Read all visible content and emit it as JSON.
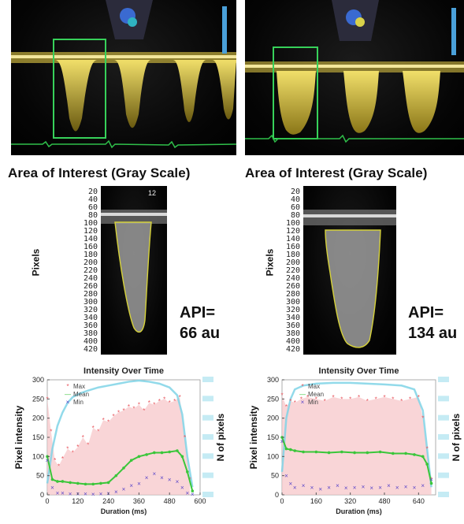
{
  "panels": [
    {
      "title": "Area of Interest (Gray Scale)",
      "api_label": "API=",
      "api_value": "66 au",
      "image_ylabel": "Pixels",
      "image_yticks": [
        "20",
        "40",
        "60",
        "80",
        "100",
        "120",
        "140",
        "160",
        "180",
        "200",
        "220",
        "240",
        "260",
        "280",
        "300",
        "320",
        "340",
        "360",
        "380",
        "400",
        "420"
      ],
      "scale_label": "12"
    },
    {
      "title": "Area of Interest (Gray Scale)",
      "api_label": "API=",
      "api_value": "134 au",
      "image_ylabel": "Pixels",
      "image_yticks": [
        "20",
        "40",
        "60",
        "80",
        "100",
        "120",
        "140",
        "160",
        "180",
        "200",
        "220",
        "240",
        "260",
        "280",
        "300",
        "320",
        "340",
        "360",
        "380",
        "400",
        "420"
      ]
    }
  ],
  "colors": {
    "max": "#e8525a",
    "mean": "#3ac63a",
    "min": "#5a46c8",
    "npixels": "#7fd3e6",
    "fill": "#f7c7c9",
    "doppler": "#d9c24a"
  },
  "chart_data": [
    {
      "type": "scatter",
      "title": "Intensity Over Time",
      "xlabel": "Duration (ms)",
      "ylabel": "Pixel intensity",
      "y2label": "N of pixels",
      "xlim": [
        0,
        600
      ],
      "ylim": [
        0,
        300
      ],
      "xticks": [
        "0",
        "120",
        "240",
        "360",
        "480",
        "600"
      ],
      "yticks": [
        "0",
        "50",
        "100",
        "150",
        "200",
        "250",
        "300"
      ],
      "legend": [
        "Max",
        "Mean",
        "Min"
      ],
      "legend_position": "top-left",
      "series": [
        {
          "name": "Max",
          "x": [
            0,
            15,
            30,
            45,
            60,
            80,
            100,
            120,
            140,
            160,
            180,
            200,
            220,
            240,
            260,
            280,
            300,
            320,
            340,
            360,
            380,
            400,
            420,
            440,
            460,
            480,
            500,
            520,
            540,
            560
          ],
          "y": [
            250,
            165,
            90,
            75,
            95,
            120,
            110,
            125,
            150,
            130,
            175,
            165,
            195,
            190,
            205,
            215,
            220,
            230,
            225,
            235,
            220,
            240,
            235,
            245,
            250,
            240,
            245,
            255,
            150,
            40
          ]
        },
        {
          "name": "Mean",
          "x": [
            0,
            20,
            40,
            60,
            90,
            120,
            150,
            180,
            210,
            240,
            270,
            300,
            330,
            360,
            390,
            420,
            450,
            480,
            510,
            530,
            550,
            570
          ],
          "y": [
            100,
            40,
            35,
            35,
            32,
            30,
            28,
            28,
            30,
            32,
            50,
            70,
            90,
            100,
            105,
            110,
            110,
            112,
            115,
            100,
            60,
            10
          ]
        },
        {
          "name": "Min",
          "x": [
            0,
            20,
            40,
            60,
            90,
            120,
            150,
            180,
            210,
            240,
            270,
            300,
            330,
            360,
            390,
            420,
            450,
            480,
            510,
            530,
            550,
            570
          ],
          "y": [
            90,
            20,
            5,
            5,
            3,
            3,
            3,
            2,
            3,
            4,
            8,
            15,
            25,
            30,
            45,
            55,
            45,
            40,
            35,
            20,
            5,
            2
          ]
        },
        {
          "name": "N of pixels",
          "x": [
            0,
            20,
            40,
            60,
            80,
            100,
            130,
            160,
            200,
            240,
            280,
            320,
            360,
            400,
            440,
            480,
            510,
            530,
            550,
            570
          ],
          "y": [
            30,
            120,
            180,
            215,
            240,
            255,
            265,
            272,
            280,
            285,
            290,
            295,
            298,
            295,
            290,
            280,
            260,
            210,
            100,
            20
          ]
        }
      ]
    },
    {
      "type": "scatter",
      "title": "Intensity Over Time",
      "xlabel": "Duration (ms)",
      "ylabel": "Pixel intensity",
      "y2label": "N of pixels",
      "xlim": [
        0,
        720
      ],
      "ylim": [
        0,
        300
      ],
      "xticks": [
        "0",
        "160",
        "320",
        "480",
        "640"
      ],
      "yticks": [
        "0",
        "50",
        "100",
        "150",
        "200",
        "250",
        "300"
      ],
      "legend": [
        "Max",
        "Mean",
        "Min"
      ],
      "legend_position": "top-left",
      "series": [
        {
          "name": "Max",
          "x": [
            0,
            20,
            40,
            60,
            90,
            120,
            160,
            200,
            240,
            280,
            320,
            360,
            400,
            440,
            480,
            520,
            560,
            600,
            640,
            660,
            680,
            700
          ],
          "y": [
            260,
            230,
            245,
            240,
            250,
            255,
            250,
            245,
            255,
            250,
            250,
            255,
            245,
            250,
            255,
            250,
            245,
            250,
            255,
            200,
            120,
            40
          ]
        },
        {
          "name": "Mean",
          "x": [
            0,
            20,
            40,
            60,
            100,
            160,
            220,
            280,
            340,
            400,
            460,
            520,
            580,
            620,
            660,
            680,
            700
          ],
          "y": [
            150,
            120,
            118,
            115,
            112,
            112,
            110,
            112,
            110,
            110,
            112,
            108,
            108,
            105,
            100,
            80,
            30
          ]
        },
        {
          "name": "Min",
          "x": [
            0,
            20,
            40,
            60,
            100,
            140,
            180,
            220,
            260,
            300,
            340,
            380,
            420,
            460,
            500,
            540,
            580,
            620,
            660,
            700
          ],
          "y": [
            140,
            50,
            30,
            20,
            25,
            20,
            15,
            20,
            25,
            18,
            20,
            22,
            18,
            20,
            25,
            20,
            22,
            20,
            25,
            40
          ]
        },
        {
          "name": "N of pixels",
          "x": [
            0,
            20,
            40,
            60,
            100,
            160,
            240,
            320,
            400,
            480,
            560,
            620,
            660,
            680,
            700
          ],
          "y": [
            60,
            200,
            250,
            275,
            285,
            290,
            292,
            292,
            290,
            288,
            285,
            275,
            220,
            120,
            20
          ]
        }
      ]
    }
  ]
}
